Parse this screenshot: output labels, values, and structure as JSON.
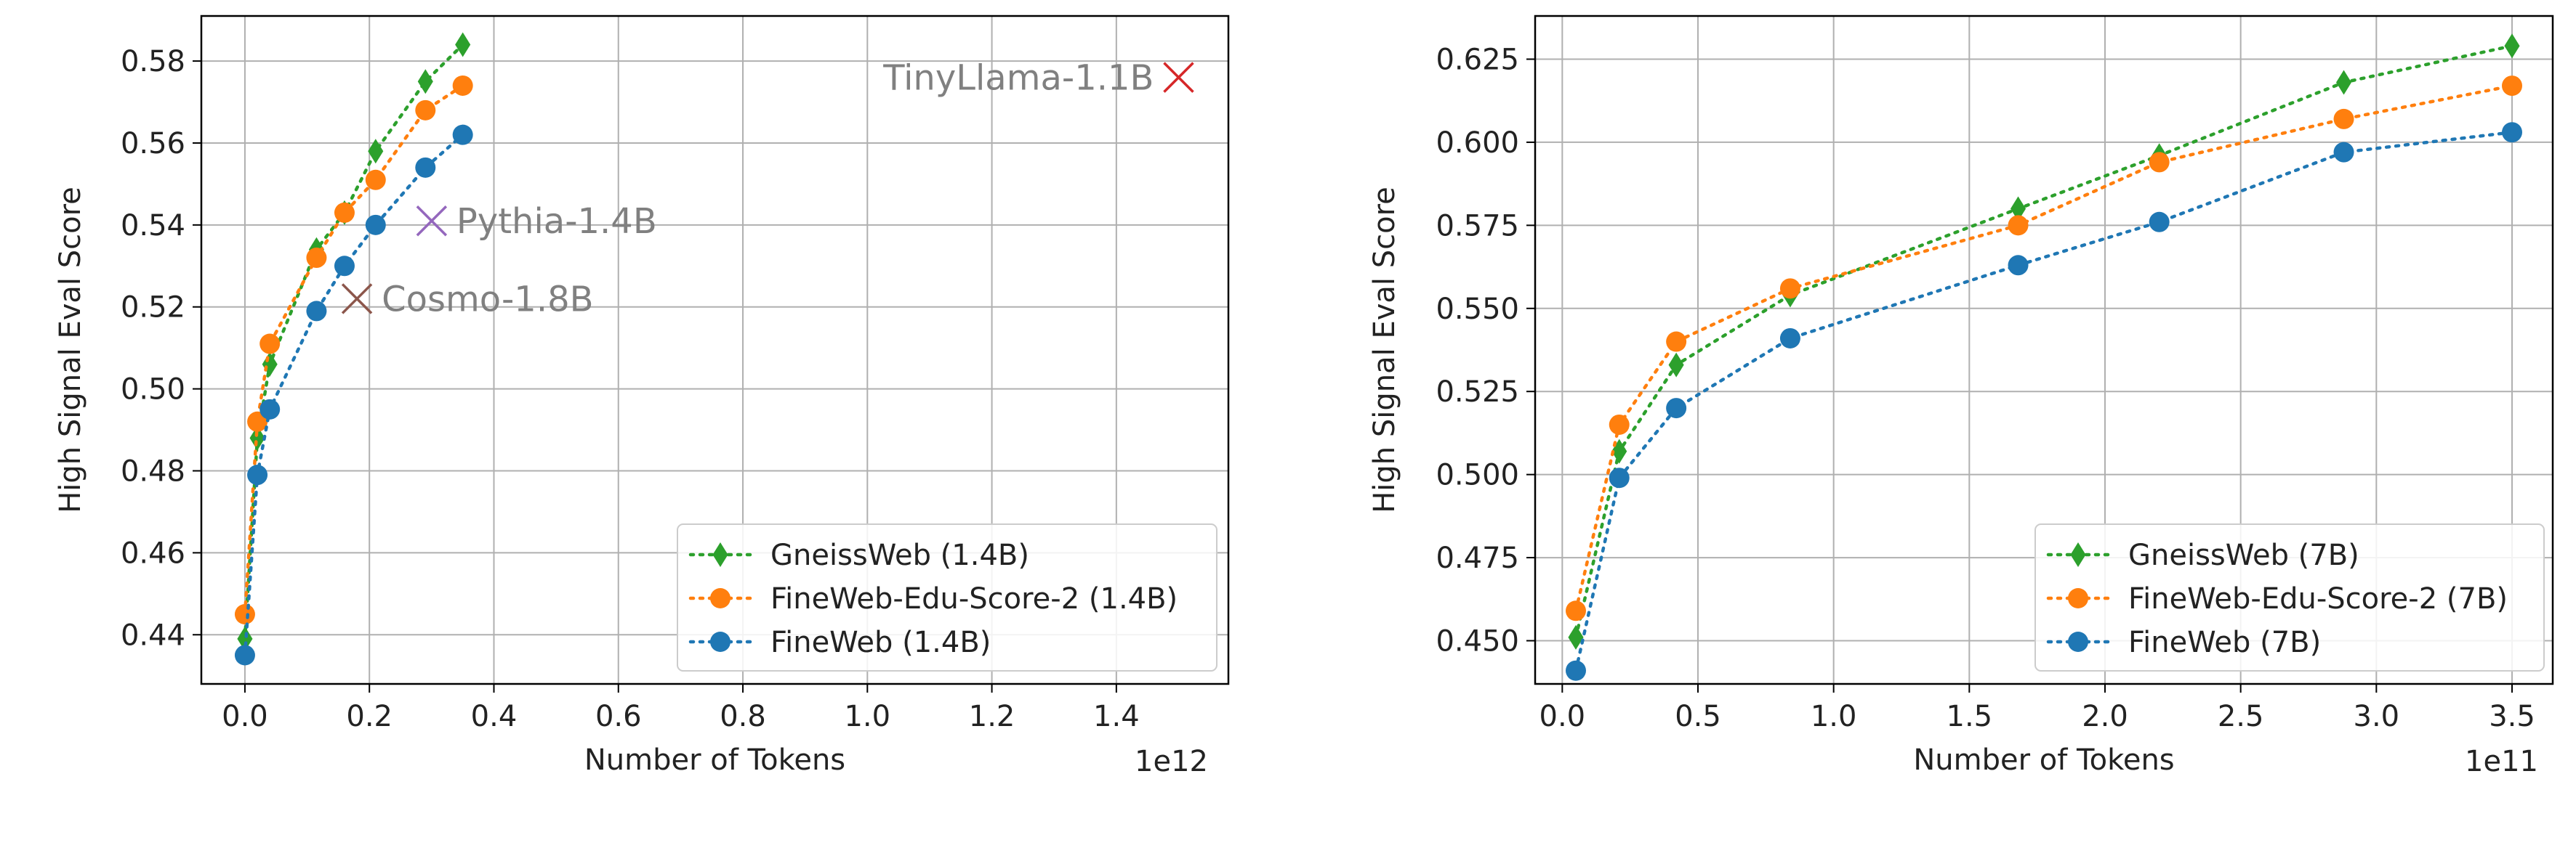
{
  "chart_data": [
    {
      "type": "line",
      "xlabel": "Number of Tokens",
      "ylabel": "High Signal Eval Score",
      "x_multiplier_label": "1e12",
      "xlim": [
        -0.07,
        1.58
      ],
      "ylim": [
        0.428,
        0.591
      ],
      "xticks": [
        "0.0",
        "0.2",
        "0.4",
        "0.6",
        "0.8",
        "1.0",
        "1.2",
        "1.4"
      ],
      "xtick_values": [
        0.0,
        0.2,
        0.4,
        0.6,
        0.8,
        1.0,
        1.2,
        1.4
      ],
      "yticks": [
        "0.44",
        "0.46",
        "0.48",
        "0.50",
        "0.52",
        "0.54",
        "0.56",
        "0.58"
      ],
      "ytick_values": [
        0.44,
        0.46,
        0.48,
        0.5,
        0.52,
        0.54,
        0.56,
        0.58
      ],
      "grid": true,
      "legend_position": "lower-right",
      "series": [
        {
          "name": "GneissWeb (1.4B)",
          "color": "#2ca02c",
          "marker": "diamond",
          "x": [
            0.0,
            0.02,
            0.04,
            0.115,
            0.16,
            0.21,
            0.29,
            0.35
          ],
          "y": [
            0.439,
            0.488,
            0.506,
            0.534,
            0.543,
            0.558,
            0.575,
            0.584
          ]
        },
        {
          "name": "FineWeb-Edu-Score-2 (1.4B)",
          "color": "#ff7f0e",
          "marker": "circle",
          "x": [
            0.0,
            0.02,
            0.04,
            0.115,
            0.16,
            0.21,
            0.29,
            0.35
          ],
          "y": [
            0.445,
            0.492,
            0.511,
            0.532,
            0.543,
            0.551,
            0.568,
            0.574
          ]
        },
        {
          "name": "FineWeb (1.4B)",
          "color": "#1f77b4",
          "marker": "circle",
          "x": [
            0.0,
            0.02,
            0.04,
            0.115,
            0.16,
            0.21,
            0.29,
            0.35
          ],
          "y": [
            0.435,
            0.479,
            0.495,
            0.519,
            0.53,
            0.54,
            0.554,
            0.562
          ]
        }
      ],
      "annotations": [
        {
          "text": "TinyLlama-1.1B",
          "x": 1.5,
          "y": 0.576,
          "color": "#d62728",
          "text_side": "left"
        },
        {
          "text": "Pythia-1.4B",
          "x": 0.3,
          "y": 0.541,
          "color": "#9467bd",
          "text_side": "right"
        },
        {
          "text": "Cosmo-1.8B",
          "x": 0.18,
          "y": 0.522,
          "color": "#8c564b",
          "text_side": "right"
        }
      ]
    },
    {
      "type": "line",
      "xlabel": "Number of Tokens",
      "ylabel": "High Signal Eval Score",
      "x_multiplier_label": "1e11",
      "xlim": [
        -0.1,
        3.65
      ],
      "ylim": [
        0.437,
        0.638
      ],
      "xticks": [
        "0.0",
        "0.5",
        "1.0",
        "1.5",
        "2.0",
        "2.5",
        "3.0",
        "3.5"
      ],
      "xtick_values": [
        0.0,
        0.5,
        1.0,
        1.5,
        2.0,
        2.5,
        3.0,
        3.5
      ],
      "yticks": [
        "0.450",
        "0.475",
        "0.500",
        "0.525",
        "0.550",
        "0.575",
        "0.600",
        "0.625"
      ],
      "ytick_values": [
        0.45,
        0.475,
        0.5,
        0.525,
        0.55,
        0.575,
        0.6,
        0.625
      ],
      "grid": true,
      "legend_position": "lower-right",
      "series": [
        {
          "name": "GneissWeb (7B)",
          "color": "#2ca02c",
          "marker": "diamond",
          "x": [
            0.05,
            0.21,
            0.42,
            0.84,
            1.68,
            2.2,
            2.88,
            3.5
          ],
          "y": [
            0.451,
            0.507,
            0.533,
            0.554,
            0.58,
            0.596,
            0.618,
            0.629
          ]
        },
        {
          "name": "FineWeb-Edu-Score-2 (7B)",
          "color": "#ff7f0e",
          "marker": "circle",
          "x": [
            0.05,
            0.21,
            0.42,
            0.84,
            1.68,
            2.2,
            2.88,
            3.5
          ],
          "y": [
            0.459,
            0.515,
            0.54,
            0.556,
            0.575,
            0.594,
            0.607,
            0.617
          ]
        },
        {
          "name": "FineWeb (7B)",
          "color": "#1f77b4",
          "marker": "circle",
          "x": [
            0.05,
            0.21,
            0.42,
            0.84,
            1.68,
            2.2,
            2.88,
            3.5
          ],
          "y": [
            0.441,
            0.499,
            0.52,
            0.541,
            0.563,
            0.576,
            0.597,
            0.603
          ]
        }
      ],
      "annotations": []
    }
  ]
}
